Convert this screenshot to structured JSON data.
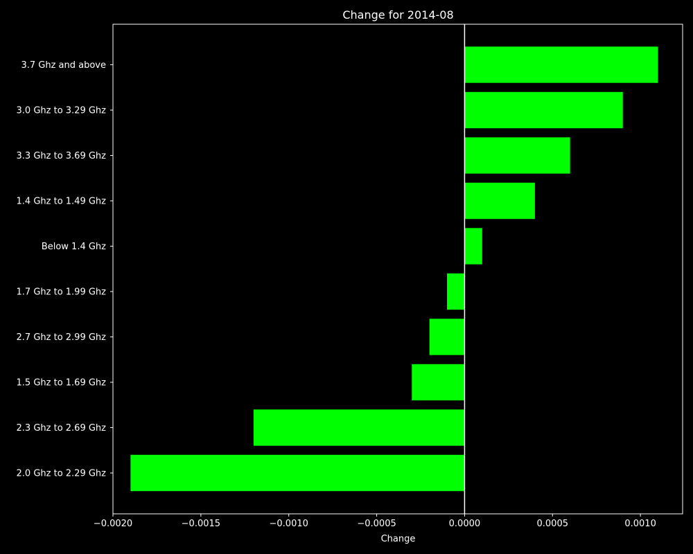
{
  "chart_data": {
    "type": "bar",
    "orientation": "horizontal",
    "title": "Change for 2014-08",
    "xlabel": "Change",
    "ylabel": "",
    "categories": [
      "3.7 Ghz and above",
      "3.0 Ghz to 3.29 Ghz",
      "3.3 Ghz to 3.69 Ghz",
      "1.4 Ghz to 1.49 Ghz",
      "Below 1.4 Ghz",
      "1.7 Ghz to 1.99 Ghz",
      "2.7 Ghz to 2.99 Ghz",
      "1.5 Ghz to 1.69 Ghz",
      "2.3 Ghz to 2.69 Ghz",
      "2.0 Ghz to 2.29 Ghz"
    ],
    "values": [
      0.0011,
      0.0009,
      0.0006,
      0.0004,
      0.0001,
      -0.0001,
      -0.0002,
      -0.0003,
      -0.0012,
      -0.0019
    ],
    "xlim": [
      -0.002,
      0.00124
    ],
    "xticks": [
      -0.002,
      -0.0015,
      -0.001,
      -0.0005,
      0.0,
      0.0005,
      0.001
    ],
    "xtick_labels": [
      "−0.0020",
      "−0.0015",
      "−0.0010",
      "−0.0005",
      "0.0000",
      "0.0005",
      "0.0010"
    ],
    "zero_line": true,
    "grid": false,
    "legend": "none",
    "colors": {
      "background": "#000000",
      "bar": "#00ff00",
      "axes": "#ffffff",
      "text": "#ffffff",
      "zero_line": "#ffffff"
    }
  }
}
